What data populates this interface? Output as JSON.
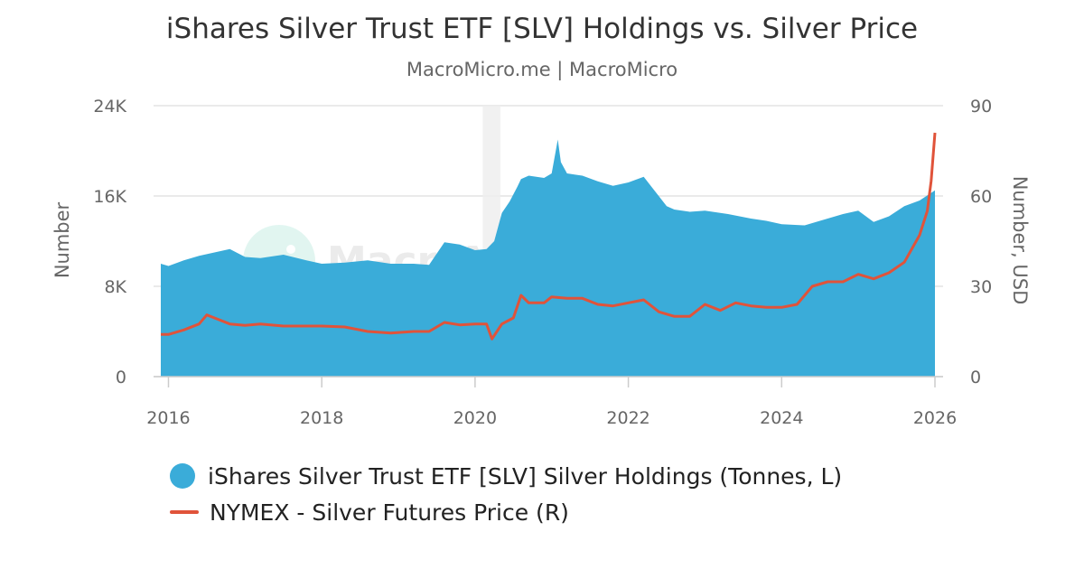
{
  "chart_data": {
    "type": "area+line",
    "title": "iShares Silver Trust ETF [SLV] Holdings vs. Silver Price",
    "subtitle": "MacroMicro.me | MacroMicro",
    "watermark": "MacroMicro",
    "y_left": {
      "label": "Number",
      "min": 0,
      "max": 24000,
      "ticks": [
        0,
        8000,
        16000,
        24000
      ],
      "tick_labels": [
        "0",
        "8K",
        "16K",
        "24K"
      ]
    },
    "y_right": {
      "label": "Number, USD",
      "min": 0,
      "max": 90,
      "ticks": [
        0,
        30,
        60,
        90
      ],
      "tick_labels": [
        "0",
        "30",
        "60",
        "90"
      ]
    },
    "x_axis": {
      "min": 2015.9,
      "max": 2026.0,
      "ticks": [
        2016,
        2018,
        2020,
        2022,
        2024,
        2026
      ],
      "tick_labels": [
        "2016",
        "2018",
        "2020",
        "2022",
        "2024",
        "2026"
      ]
    },
    "shaded_period": {
      "from": 2020.1,
      "to": 2020.33
    },
    "series": [
      {
        "name": "iShares Silver Trust ETF [SLV] Silver Holdings (Tonnes, L)",
        "axis": "left",
        "type": "area",
        "color": "#3aacd9",
        "x": [
          2015.9,
          2016.0,
          2016.2,
          2016.4,
          2016.6,
          2016.8,
          2017.0,
          2017.2,
          2017.5,
          2017.8,
          2018.0,
          2018.3,
          2018.6,
          2018.9,
          2019.2,
          2019.4,
          2019.6,
          2019.8,
          2020.0,
          2020.15,
          2020.25,
          2020.35,
          2020.45,
          2020.55,
          2020.6,
          2020.7,
          2020.9,
          2021.0,
          2021.08,
          2021.12,
          2021.2,
          2021.4,
          2021.6,
          2021.8,
          2022.0,
          2022.2,
          2022.35,
          2022.5,
          2022.6,
          2022.8,
          2023.0,
          2023.3,
          2023.6,
          2023.8,
          2024.0,
          2024.3,
          2024.5,
          2024.8,
          2025.0,
          2025.2,
          2025.4,
          2025.6,
          2025.8,
          2026.0
        ],
        "values": [
          10000,
          9800,
          10300,
          10700,
          11000,
          11300,
          10600,
          10500,
          10800,
          10300,
          10000,
          10100,
          10300,
          10000,
          10000,
          9900,
          11900,
          11700,
          11200,
          11300,
          12000,
          14500,
          15500,
          16800,
          17500,
          17800,
          17600,
          18000,
          21000,
          19000,
          18000,
          17800,
          17300,
          16900,
          17200,
          17700,
          16400,
          15100,
          14800,
          14600,
          14700,
          14400,
          14000,
          13800,
          13500,
          13400,
          13800,
          14400,
          14700,
          13700,
          14200,
          15100,
          15600,
          16500
        ]
      },
      {
        "name": "NYMEX - Silver Futures Price (R)",
        "axis": "right",
        "type": "line",
        "color": "#e0533a",
        "x": [
          2015.9,
          2016.0,
          2016.2,
          2016.4,
          2016.5,
          2016.6,
          2016.8,
          2017.0,
          2017.2,
          2017.5,
          2017.8,
          2018.0,
          2018.3,
          2018.6,
          2018.9,
          2019.2,
          2019.4,
          2019.6,
          2019.8,
          2020.0,
          2020.15,
          2020.22,
          2020.35,
          2020.5,
          2020.6,
          2020.7,
          2020.9,
          2021.0,
          2021.2,
          2021.4,
          2021.6,
          2021.8,
          2022.0,
          2022.2,
          2022.4,
          2022.6,
          2022.8,
          2023.0,
          2023.2,
          2023.4,
          2023.6,
          2023.8,
          2024.0,
          2024.2,
          2024.4,
          2024.6,
          2024.8,
          2025.0,
          2025.2,
          2025.4,
          2025.6,
          2025.8,
          2025.9,
          2025.95,
          2026.0
        ],
        "values": [
          14.0,
          14.0,
          15.5,
          17.5,
          20.5,
          19.5,
          17.5,
          17.0,
          17.5,
          16.8,
          16.8,
          16.8,
          16.5,
          15.0,
          14.5,
          15.0,
          15.0,
          18.0,
          17.2,
          17.5,
          17.5,
          12.5,
          17.5,
          19.5,
          27.0,
          24.5,
          24.5,
          26.5,
          26.0,
          26.0,
          24.0,
          23.5,
          24.5,
          25.5,
          21.5,
          20.0,
          20.0,
          24.0,
          22.0,
          24.5,
          23.5,
          23.0,
          23.0,
          24.0,
          30.0,
          31.5,
          31.5,
          34.0,
          32.5,
          34.5,
          38.0,
          47.0,
          55.0,
          65.0,
          81.0
        ]
      }
    ]
  },
  "legend": {
    "area_label": "iShares Silver Trust ETF [SLV] Silver Holdings (Tonnes, L)",
    "line_label": "NYMEX - Silver Futures Price (R)"
  }
}
